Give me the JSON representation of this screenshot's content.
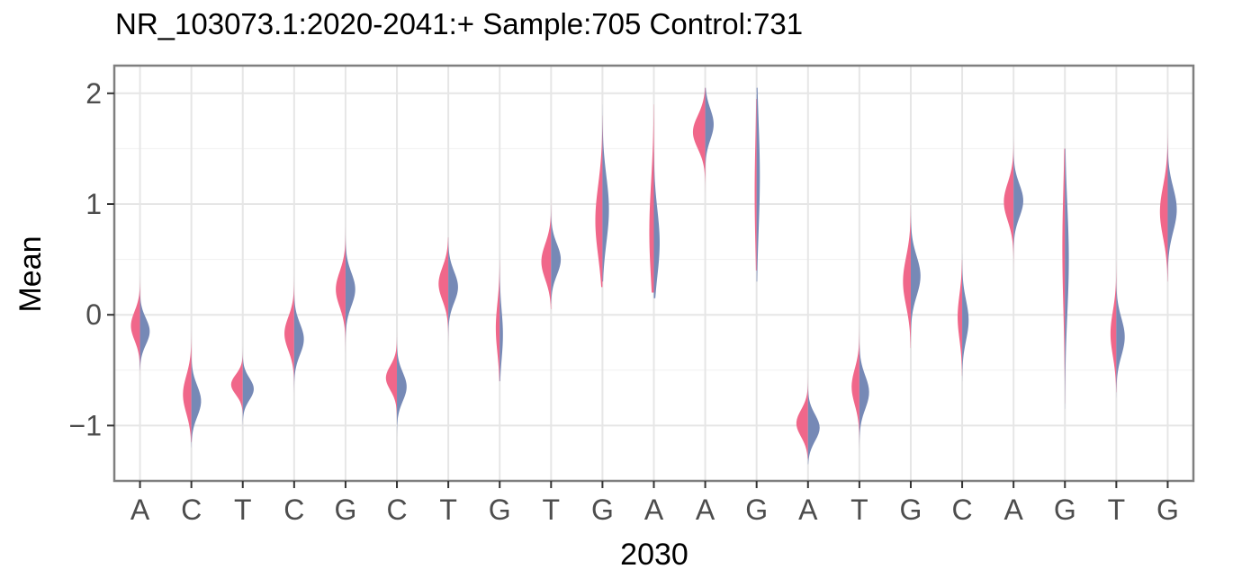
{
  "chart_data": {
    "type": "violin",
    "title": "NR_103073.1:2020-2041:+   Sample:705  Control:731",
    "xlabel": "2030",
    "ylabel": "Mean",
    "ylim": [
      -1.5,
      2.25
    ],
    "yticks": [
      -1,
      0,
      1,
      2
    ],
    "grid": true,
    "legend": "none",
    "colors": {
      "sample": "#f0678a",
      "control": "#7689b6",
      "grid": "#e6e6e6",
      "panel_border": "#7f7f7f",
      "tick_label": "#4d4d4d"
    },
    "categories": [
      "A",
      "C",
      "T",
      "C",
      "G",
      "C",
      "T",
      "G",
      "T",
      "G",
      "A",
      "A",
      "G",
      "A",
      "T",
      "G",
      "C",
      "A",
      "G",
      "T",
      "G"
    ],
    "series": [
      {
        "key": "sample",
        "side": "left",
        "center": [
          -0.1,
          -0.72,
          -0.63,
          -0.17,
          0.23,
          -0.57,
          0.28,
          -0.12,
          0.48,
          0.85,
          0.75,
          1.65,
          1.1,
          -0.98,
          -0.65,
          0.3,
          -0.02,
          1.02,
          0.6,
          -0.17,
          0.93
        ],
        "min": [
          -0.55,
          -1.15,
          -1.1,
          -0.75,
          -0.4,
          -1.05,
          -0.35,
          -0.6,
          0.05,
          0.25,
          0.2,
          0.9,
          0.4,
          -1.3,
          -1.2,
          -0.3,
          -0.55,
          0.2,
          -0.8,
          -0.7,
          0.3
        ],
        "max": [
          0.35,
          0.5,
          -0.05,
          0.5,
          0.9,
          -0.1,
          0.7,
          0.5,
          1.05,
          1.8,
          1.9,
          2.05,
          1.95,
          0.35,
          0.55,
          1.1,
          0.5,
          1.75,
          1.5,
          0.6,
          1.8
        ],
        "width": [
          0.28,
          0.26,
          0.36,
          0.3,
          0.3,
          0.34,
          0.3,
          0.12,
          0.3,
          0.22,
          0.14,
          0.38,
          0.06,
          0.36,
          0.24,
          0.24,
          0.14,
          0.3,
          0.08,
          0.18,
          0.24
        ],
        "spread": [
          0.13,
          0.17,
          0.09,
          0.15,
          0.16,
          0.11,
          0.15,
          0.22,
          0.16,
          0.32,
          0.45,
          0.15,
          0.5,
          0.12,
          0.16,
          0.22,
          0.2,
          0.17,
          0.55,
          0.2,
          0.23
        ]
      },
      {
        "key": "control",
        "side": "right",
        "center": [
          -0.15,
          -0.78,
          -0.67,
          -0.22,
          0.23,
          -0.65,
          0.25,
          -0.18,
          0.5,
          0.95,
          0.65,
          1.72,
          1.25,
          -1.02,
          -0.7,
          0.35,
          -0.05,
          1.03,
          0.5,
          -0.2,
          0.95
        ],
        "min": [
          -0.5,
          -1.2,
          -1.1,
          -0.7,
          -0.4,
          -1.1,
          -0.3,
          -0.6,
          0.1,
          0.3,
          0.15,
          1.1,
          0.3,
          -1.35,
          -1.25,
          -0.25,
          -0.6,
          0.3,
          -0.85,
          -0.75,
          0.3
        ],
        "max": [
          0.3,
          0.55,
          -0.05,
          0.45,
          0.9,
          -0.2,
          0.7,
          0.55,
          1.1,
          1.9,
          1.95,
          2.05,
          2.05,
          0.3,
          0.6,
          1.1,
          0.55,
          1.8,
          1.5,
          0.6,
          1.75
        ],
        "width": [
          0.3,
          0.3,
          0.34,
          0.3,
          0.3,
          0.3,
          0.3,
          0.1,
          0.3,
          0.2,
          0.18,
          0.26,
          0.1,
          0.36,
          0.3,
          0.3,
          0.2,
          0.3,
          0.12,
          0.26,
          0.28
        ],
        "spread": [
          0.12,
          0.14,
          0.1,
          0.14,
          0.15,
          0.13,
          0.14,
          0.22,
          0.14,
          0.3,
          0.3,
          0.14,
          0.5,
          0.12,
          0.15,
          0.18,
          0.18,
          0.15,
          0.5,
          0.17,
          0.2
        ]
      }
    ]
  }
}
